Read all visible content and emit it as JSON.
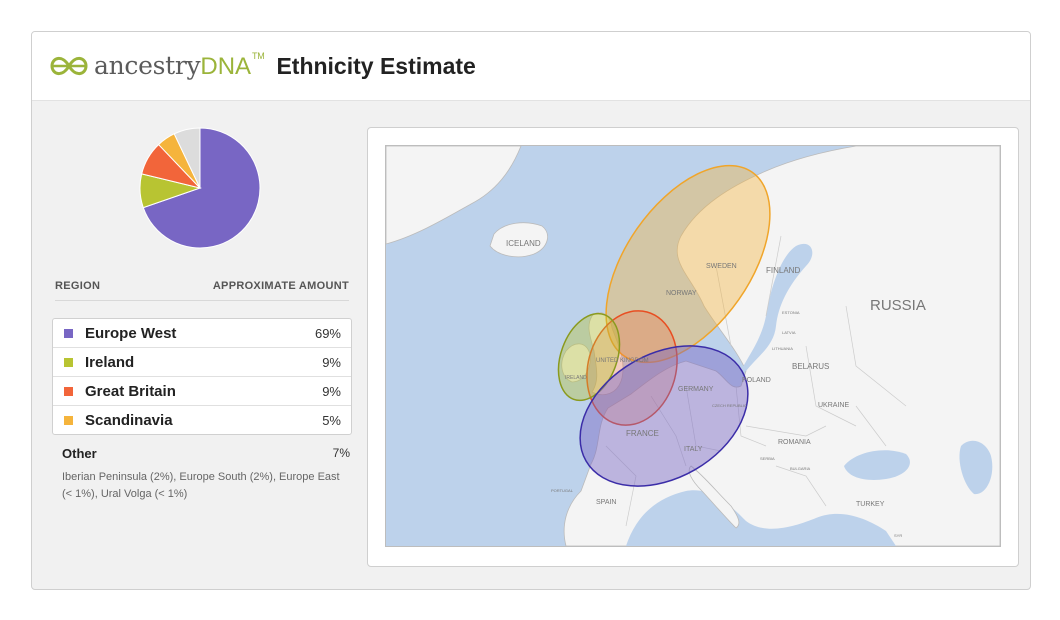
{
  "header": {
    "brand_name": "ancestry",
    "brand_suffix": "DNA",
    "brand_tm": "TM",
    "title": "Ethnicity Estimate",
    "leaf_icon": "leaf-logo-icon"
  },
  "table": {
    "col_region": "REGION",
    "col_amount": "APPROXIMATE AMOUNT",
    "rows": [
      {
        "name": "Europe West",
        "value": "69%",
        "color": "#7866c4"
      },
      {
        "name": "Ireland",
        "value": "9%",
        "color": "#b8c432"
      },
      {
        "name": "Great Britain",
        "value": "9%",
        "color": "#f2653a"
      },
      {
        "name": "Scandinavia",
        "value": "5%",
        "color": "#f5b43c"
      }
    ],
    "other_label": "Other",
    "other_value": "7%",
    "other_desc": "Iberian Peninsula (2%), Europe South (2%), Europe East (< 1%), Ural Volga (< 1%)"
  },
  "chart_data": {
    "type": "pie",
    "categories": [
      "Europe West",
      "Ireland",
      "Great Britain",
      "Scandinavia",
      "Other"
    ],
    "values": [
      69,
      9,
      9,
      5,
      7
    ],
    "colors": [
      "#7866c4",
      "#b8c432",
      "#f2653a",
      "#f5b43c",
      "#dcdcdc"
    ],
    "start": "top, clockwise"
  },
  "map": {
    "labels": {
      "iceland": "ICELAND",
      "finland": "FINLAND",
      "sweden": "SWEDEN",
      "norway": "NORWAY",
      "russia": "RUSSIA",
      "estonia": "ESTONIA",
      "latvia": "LATVIA",
      "lithuania": "LITHUANIA",
      "belarus": "BELARUS",
      "ireland": "IRELAND",
      "uk": "UNITED KINGDOM",
      "germany": "GERMANY",
      "poland": "POLAND",
      "ukraine": "UKRAINE",
      "czech": "CZECH REPUBLIC",
      "france": "FRANCE",
      "italy": "ITALY",
      "romania": "ROMANIA",
      "bulgaria": "BULGARIA",
      "serbia": "SERBIA",
      "portugal": "PORTUGAL",
      "spain": "SPAIN",
      "turkey": "TURKEY",
      "syria": "SYR"
    }
  }
}
